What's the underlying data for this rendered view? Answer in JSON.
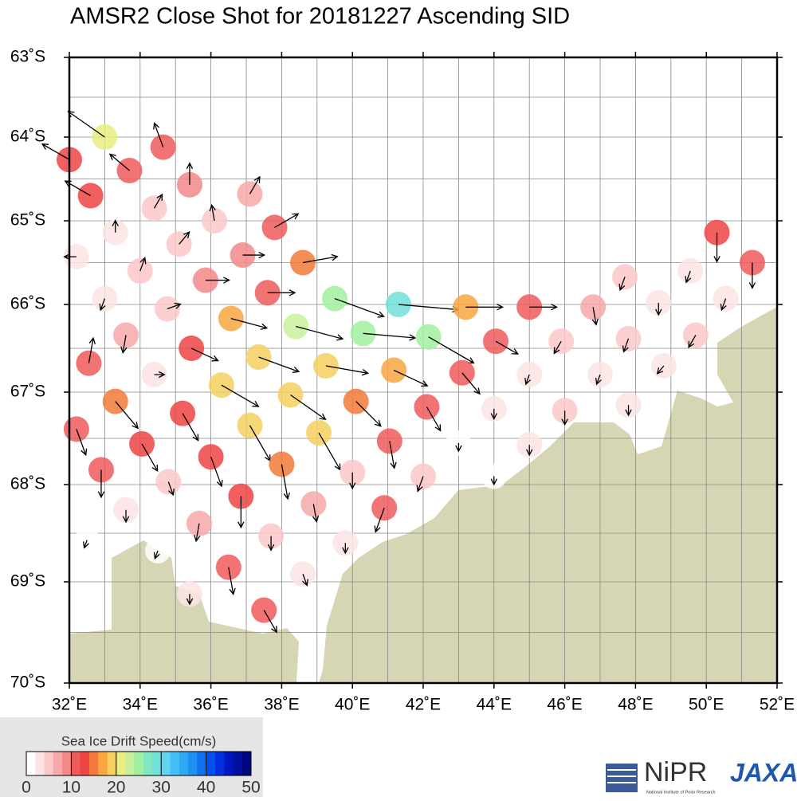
{
  "chart_data": {
    "type": "vector-map",
    "title": "AMSR2 Close Shot for 20181227 Ascending SID",
    "xlim": [
      32,
      52
    ],
    "ylim": [
      -70,
      -63
    ],
    "xticks": [
      {
        "value": 32,
        "label": "32˚E"
      },
      {
        "value": 34,
        "label": "34˚E"
      },
      {
        "value": 36,
        "label": "36˚E"
      },
      {
        "value": 38,
        "label": "38˚E"
      },
      {
        "value": 40,
        "label": "40˚E"
      },
      {
        "value": 42,
        "label": "42˚E"
      },
      {
        "value": 44,
        "label": "44˚E"
      },
      {
        "value": 46,
        "label": "46˚E"
      },
      {
        "value": 48,
        "label": "48˚E"
      },
      {
        "value": 50,
        "label": "50˚E"
      },
      {
        "value": 52,
        "label": "52˚E"
      }
    ],
    "yticks": [
      {
        "value": -63,
        "label": "63˚S"
      },
      {
        "value": -64,
        "label": "64˚S"
      },
      {
        "value": -65,
        "label": "65˚S"
      },
      {
        "value": -66,
        "label": "66˚S"
      },
      {
        "value": -67,
        "label": "67˚S"
      },
      {
        "value": -68,
        "label": "68˚S"
      },
      {
        "value": -69,
        "label": "69˚S"
      },
      {
        "value": -70,
        "label": "70˚S"
      }
    ],
    "grid": true,
    "land_color": "#d6d6b4",
    "colorbar": {
      "title": "Sea Ice Drift Speed(cm/s)",
      "ticks": [
        0,
        10,
        20,
        30,
        40,
        50
      ],
      "colors": [
        "#ffffff",
        "#fde4e4",
        "#fbc8c8",
        "#f7a8a8",
        "#f38888",
        "#ef5a5a",
        "#ee4444",
        "#f27a3a",
        "#f7a640",
        "#f5d060",
        "#e8ee80",
        "#c8f09a",
        "#a0f0a0",
        "#80e8c0",
        "#70e0d8",
        "#60d4f0",
        "#40c0f4",
        "#30a8f4",
        "#2090f0",
        "#1070f0",
        "#0050f0",
        "#0030e0",
        "#0018c0",
        "#0010a0",
        "#000880"
      ]
    },
    "points": [
      [
        33.0,
        -64.0,
        20,
        305
      ],
      [
        32.0,
        -64.27,
        13,
        300
      ],
      [
        34.65,
        -64.12,
        10,
        340
      ],
      [
        33.7,
        -64.4,
        10,
        310
      ],
      [
        35.4,
        -64.57,
        8,
        0
      ],
      [
        32.6,
        -64.7,
        12,
        300
      ],
      [
        37.1,
        -64.68,
        7,
        30
      ],
      [
        34.4,
        -64.85,
        5,
        30
      ],
      [
        36.1,
        -65.0,
        5,
        350
      ],
      [
        37.8,
        -65.08,
        11,
        60
      ],
      [
        33.3,
        -65.14,
        3,
        0
      ],
      [
        35.1,
        -65.28,
        5,
        40
      ],
      [
        36.9,
        -65.41,
        8,
        90
      ],
      [
        38.6,
        -65.5,
        15,
        80
      ],
      [
        32.2,
        -65.43,
        3,
        270
      ],
      [
        34.0,
        -65.6,
        4,
        20
      ],
      [
        35.85,
        -65.71,
        9,
        90
      ],
      [
        37.6,
        -65.86,
        11,
        90
      ],
      [
        39.5,
        -65.93,
        24,
        110
      ],
      [
        41.3,
        -66.0,
        28,
        95
      ],
      [
        43.2,
        -66.03,
        16,
        90
      ],
      [
        45.0,
        -66.03,
        11,
        90
      ],
      [
        33.0,
        -65.93,
        3,
        200
      ],
      [
        34.77,
        -66.05,
        4,
        70
      ],
      [
        36.57,
        -66.16,
        16,
        105
      ],
      [
        38.4,
        -66.25,
        22,
        105
      ],
      [
        40.3,
        -66.33,
        24,
        95
      ],
      [
        42.15,
        -66.37,
        24,
        120
      ],
      [
        44.05,
        -66.42,
        10,
        120
      ],
      [
        46.8,
        -66.03,
        6,
        170
      ],
      [
        47.7,
        -65.67,
        4,
        200
      ],
      [
        48.65,
        -65.98,
        3,
        180
      ],
      [
        49.55,
        -65.6,
        3,
        200
      ],
      [
        50.3,
        -65.14,
        12,
        180
      ],
      [
        51.3,
        -65.5,
        10,
        180
      ],
      [
        50.55,
        -65.93,
        3,
        200
      ],
      [
        49.7,
        -66.35,
        4,
        210
      ],
      [
        47.8,
        -66.39,
        4,
        200
      ],
      [
        45.9,
        -66.42,
        4,
        210
      ],
      [
        33.6,
        -66.35,
        6,
        190
      ],
      [
        35.45,
        -66.5,
        12,
        115
      ],
      [
        37.35,
        -66.6,
        19,
        110
      ],
      [
        39.25,
        -66.7,
        19,
        100
      ],
      [
        41.17,
        -66.75,
        16,
        115
      ],
      [
        43.1,
        -66.78,
        11,
        140
      ],
      [
        32.55,
        -66.67,
        10,
        10
      ],
      [
        34.4,
        -66.8,
        2,
        90
      ],
      [
        45.0,
        -66.8,
        2,
        200
      ],
      [
        47.0,
        -66.8,
        2,
        200
      ],
      [
        48.8,
        -66.7,
        2,
        220
      ],
      [
        36.3,
        -66.92,
        19,
        120
      ],
      [
        38.25,
        -67.03,
        19,
        125
      ],
      [
        33.3,
        -67.1,
        15,
        140
      ],
      [
        35.2,
        -67.23,
        13,
        150
      ],
      [
        37.1,
        -67.36,
        18,
        150
      ],
      [
        39.05,
        -67.44,
        19,
        150
      ],
      [
        40.1,
        -67.1,
        15,
        135
      ],
      [
        42.1,
        -67.16,
        11,
        150
      ],
      [
        44.0,
        -67.18,
        2,
        180
      ],
      [
        46.0,
        -67.2,
        4,
        180
      ],
      [
        47.8,
        -67.14,
        2,
        180
      ],
      [
        32.2,
        -67.4,
        11,
        160
      ],
      [
        34.05,
        -67.56,
        13,
        150
      ],
      [
        36.0,
        -67.7,
        13,
        160
      ],
      [
        38.0,
        -67.78,
        15,
        170
      ],
      [
        40.0,
        -67.87,
        5,
        180
      ],
      [
        41.05,
        -67.53,
        11,
        170
      ],
      [
        42.0,
        -67.91,
        5,
        200
      ],
      [
        43.0,
        -67.55,
        1,
        180
      ],
      [
        45.0,
        -67.57,
        2,
        180
      ],
      [
        32.9,
        -67.84,
        11,
        180
      ],
      [
        34.8,
        -67.97,
        4,
        160
      ],
      [
        36.85,
        -68.12,
        13,
        180
      ],
      [
        38.9,
        -68.2,
        6,
        170
      ],
      [
        40.9,
        -68.24,
        10,
        200
      ],
      [
        44.0,
        -67.91,
        1,
        180
      ],
      [
        33.6,
        -68.26,
        3,
        180
      ],
      [
        35.67,
        -68.4,
        6,
        190
      ],
      [
        37.7,
        -68.53,
        4,
        180
      ],
      [
        39.8,
        -68.6,
        2,
        180
      ],
      [
        32.5,
        -68.57,
        1,
        200
      ],
      [
        34.5,
        -68.68,
        1,
        200
      ],
      [
        36.5,
        -68.85,
        11,
        170
      ],
      [
        38.6,
        -68.92,
        3,
        160
      ],
      [
        37.5,
        -69.28,
        10,
        150
      ],
      [
        35.4,
        -69.12,
        2,
        180
      ]
    ]
  },
  "logos": [
    "NiPR",
    "National Institute of Polar Research",
    "JAXA"
  ]
}
